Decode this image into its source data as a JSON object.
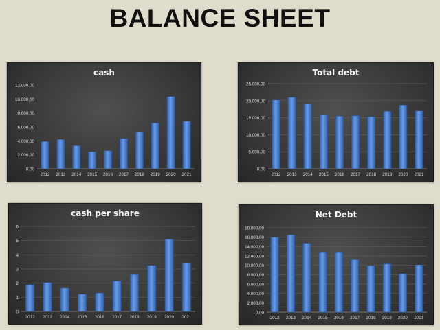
{
  "page": {
    "title": "BALANCE SHEET"
  },
  "colors": {
    "bar": "#4a7fd0",
    "bar_light": "#6a9be6",
    "bar_dark": "#2f5fa8",
    "text": "#d9d9d9",
    "grid": "#5c5c5c"
  },
  "chart_data": [
    {
      "type": "bar",
      "title": "cash",
      "categories": [
        "2012",
        "2013",
        "2014",
        "2015",
        "2016",
        "2017",
        "2018",
        "2019",
        "2020",
        "2021"
      ],
      "values": [
        3900,
        4200,
        3300,
        2450,
        2600,
        4350,
        5300,
        6550,
        10350,
        6800
      ],
      "ylim": [
        0,
        12000
      ],
      "yticks": [
        0,
        2000,
        4000,
        6000,
        8000,
        10000,
        12000
      ],
      "ytick_labels": [
        "0,00",
        "2.000,00",
        "4.000,00",
        "6.000,00",
        "8.000,00",
        "10.000,00",
        "12.000,00"
      ],
      "grid": false
    },
    {
      "type": "bar",
      "title": "Total debt",
      "categories": [
        "2012",
        "2013",
        "2014",
        "2015",
        "2016",
        "2017",
        "2018",
        "2019",
        "2020",
        "2021"
      ],
      "values": [
        20200,
        21000,
        19000,
        15800,
        15500,
        15600,
        15300,
        16900,
        18700,
        17000
      ],
      "ylim": [
        0,
        25000
      ],
      "yticks": [
        0,
        5000,
        10000,
        15000,
        20000,
        25000
      ],
      "ytick_labels": [
        "0,00",
        "5.000,00",
        "10.000,00",
        "15.000,00",
        "20.000,00",
        "25.000,00"
      ],
      "grid": true
    },
    {
      "type": "bar",
      "title": "cash per share",
      "categories": [
        "2012",
        "2013",
        "2014",
        "2015",
        "2016",
        "2017",
        "2018",
        "2019",
        "2020",
        "2021"
      ],
      "values": [
        1.9,
        2.05,
        1.65,
        1.22,
        1.3,
        2.15,
        2.6,
        3.25,
        5.1,
        3.4
      ],
      "ylim": [
        0,
        6
      ],
      "yticks": [
        0,
        1,
        2,
        3,
        4,
        5,
        6
      ],
      "ytick_labels": [
        "0",
        "1",
        "2",
        "3",
        "4",
        "5",
        "6"
      ],
      "grid": true
    },
    {
      "type": "bar",
      "title": "Net Debt",
      "categories": [
        "2012",
        "2013",
        "2014",
        "2015",
        "2016",
        "2017",
        "2018",
        "2019",
        "2020",
        "2021"
      ],
      "values": [
        16000,
        16500,
        14700,
        12700,
        12700,
        11200,
        9900,
        10300,
        8200,
        10100
      ],
      "ylim": [
        0,
        18000
      ],
      "yticks": [
        0,
        2000,
        4000,
        6000,
        8000,
        10000,
        12000,
        14000,
        16000,
        18000
      ],
      "ytick_labels": [
        "0,00",
        "2.000,00",
        "4.000,00",
        "6.000,00",
        "8.000,00",
        "10.000,00",
        "12.000,00",
        "14.000,00",
        "16.000,00",
        "18.000,00"
      ],
      "grid": true
    }
  ]
}
